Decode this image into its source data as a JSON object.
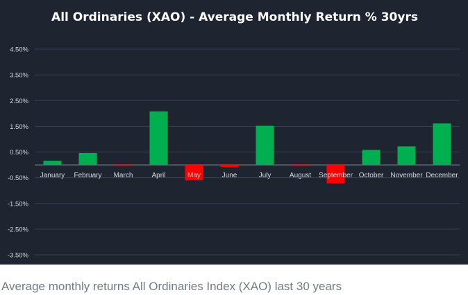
{
  "chart_data": {
    "type": "bar",
    "title": "All Ordinaries (XAO) - Average Monthly Return % 30yrs",
    "xlabel": "",
    "ylabel": "",
    "categories": [
      "January",
      "February",
      "March",
      "April",
      "May",
      "June",
      "July",
      "August",
      "September",
      "October",
      "November",
      "December"
    ],
    "values": [
      0.16,
      0.46,
      -0.02,
      2.08,
      -0.6,
      -0.08,
      1.52,
      -0.04,
      -0.72,
      0.58,
      0.72,
      1.61
    ],
    "ylim": [
      -3.5,
      4.5
    ],
    "yticks": [
      4.5,
      3.5,
      2.5,
      1.5,
      0.5,
      -0.5,
      -1.5,
      -2.5,
      -3.5
    ],
    "ytick_labels": [
      "4.50%",
      "3.50%",
      "2.50%",
      "1.50%",
      "0.50%",
      "-0.50%",
      "-1.50%",
      "-2.50%",
      "-3.50%"
    ],
    "grid": true,
    "legend": "none",
    "colors": {
      "positive": "#00b050",
      "negative": "#ff0000",
      "background": "#1e2430",
      "grid": "#3a4150",
      "text": "#ffffff",
      "tick_text": "#d6d9de"
    }
  },
  "caption": "Average monthly returns All Ordinaries Index (XAO) last 30 years"
}
